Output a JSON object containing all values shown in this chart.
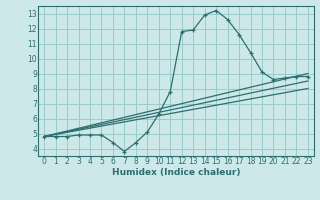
{
  "xlabel": "Humidex (Indice chaleur)",
  "bg_color": "#cce8e8",
  "grid_color": "#99cccc",
  "line_color": "#2e6e6e",
  "xlim": [
    -0.5,
    23.5
  ],
  "ylim": [
    3.5,
    13.5
  ],
  "xticks": [
    0,
    1,
    2,
    3,
    4,
    5,
    6,
    7,
    8,
    9,
    10,
    11,
    12,
    13,
    14,
    15,
    16,
    17,
    18,
    19,
    20,
    21,
    22,
    23
  ],
  "yticks": [
    4,
    5,
    6,
    7,
    8,
    9,
    10,
    11,
    12,
    13
  ],
  "line1_x": [
    0,
    1,
    2,
    3,
    4,
    5,
    6,
    7,
    8,
    9,
    10,
    11,
    12,
    13,
    14,
    15,
    16,
    17,
    18,
    19,
    20,
    21,
    22,
    23
  ],
  "line1_y": [
    4.8,
    4.8,
    4.8,
    4.9,
    4.9,
    4.9,
    4.4,
    3.8,
    4.4,
    5.1,
    6.3,
    7.8,
    11.8,
    11.9,
    12.9,
    13.2,
    12.6,
    11.6,
    10.4,
    9.1,
    8.6,
    8.7,
    8.8,
    8.8
  ],
  "line2_x": [
    0,
    23
  ],
  "line2_y": [
    4.8,
    9.0
  ],
  "line3_x": [
    0,
    23
  ],
  "line3_y": [
    4.8,
    8.5
  ],
  "line4_x": [
    0,
    23
  ],
  "line4_y": [
    4.8,
    8.0
  ]
}
